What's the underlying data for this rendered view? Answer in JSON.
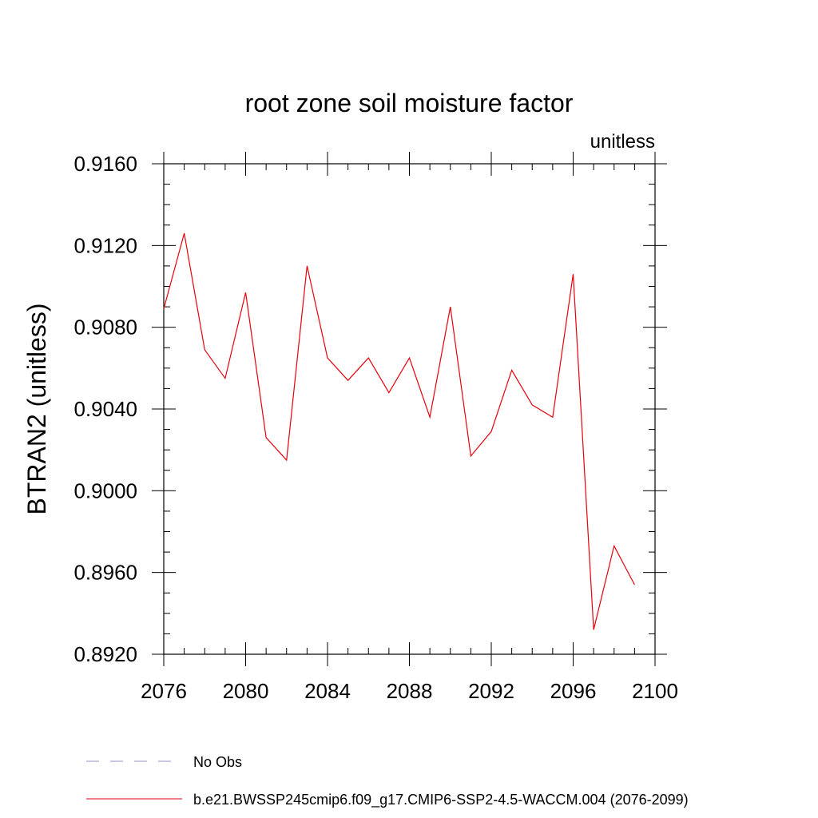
{
  "chart_data": {
    "type": "line",
    "title": "root zone soil moisture factor",
    "units_label": "unitless",
    "ylabel": "BTRAN2  (unitless)",
    "xlabel": "",
    "xlim": [
      2076,
      2100
    ],
    "ylim": [
      0.892,
      0.916
    ],
    "x_ticks": [
      2076,
      2080,
      2084,
      2088,
      2092,
      2096,
      2100
    ],
    "x_tick_labels": [
      "2076",
      "2080",
      "2084",
      "2088",
      "2092",
      "2096",
      "2100"
    ],
    "x_minor_step": 1,
    "y_ticks": [
      0.892,
      0.896,
      0.9,
      0.904,
      0.908,
      0.912,
      0.916
    ],
    "y_tick_labels": [
      "0.8920",
      "0.8960",
      "0.9000",
      "0.9040",
      "0.9080",
      "0.9120",
      "0.9160"
    ],
    "y_minor_step": 0.001,
    "grid": false,
    "series": [
      {
        "name": "b.e21.BWSSP245cmip6.f09_g17.CMIP6-SSP2-4.5-WACCM.004 (2076-2099)",
        "color": "#e8000b",
        "dash": "solid",
        "x": [
          2076,
          2077,
          2078,
          2079,
          2080,
          2081,
          2082,
          2083,
          2084,
          2085,
          2086,
          2087,
          2088,
          2089,
          2090,
          2091,
          2092,
          2093,
          2094,
          2095,
          2096,
          2097,
          2098,
          2099
        ],
        "values": [
          0.9089,
          0.9126,
          0.9069,
          0.9055,
          0.9097,
          0.9026,
          0.9015,
          0.911,
          0.9065,
          0.9054,
          0.9065,
          0.9048,
          0.9065,
          0.9036,
          0.909,
          0.9017,
          0.9029,
          0.9059,
          0.9042,
          0.9036,
          0.9106,
          0.8932,
          0.8973,
          0.8954
        ]
      }
    ],
    "legend": [
      {
        "label": "No Obs",
        "color": "#8f8fc0",
        "dash": "dashed"
      },
      {
        "label": "b.e21.BWSSP245cmip6.f09_g17.CMIP6-SSP2-4.5-WACCM.004 (2076-2099)",
        "color": "#e8000b",
        "dash": "solid"
      }
    ],
    "legend_position": "bottom"
  }
}
